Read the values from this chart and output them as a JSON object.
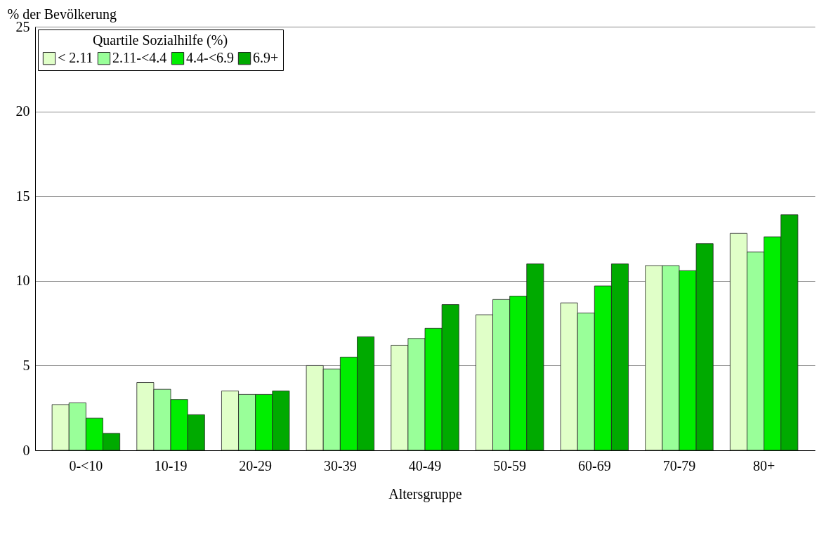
{
  "chart_data": {
    "type": "bar",
    "xlabel": "Altersgruppe",
    "ylabel": "% der Bevölkerung",
    "legend_title": "Quartile Sozialhilfe (%)",
    "categories": [
      "0-<10",
      "10-19",
      "20-29",
      "30-39",
      "40-49",
      "50-59",
      "60-69",
      "70-79",
      "80+"
    ],
    "series": [
      {
        "name": "< 2.11",
        "color": "#e0ffc8",
        "values": [
          2.7,
          4.0,
          3.5,
          5.0,
          6.2,
          8.0,
          8.7,
          10.9,
          12.8
        ]
      },
      {
        "name": "2.11-<4.4",
        "color": "#99ff99",
        "values": [
          2.8,
          3.6,
          3.3,
          4.8,
          6.6,
          8.9,
          8.1,
          10.9,
          11.7
        ]
      },
      {
        "name": "4.4-<6.9",
        "color": "#00ee00",
        "values": [
          1.9,
          3.0,
          3.3,
          5.5,
          7.2,
          9.1,
          9.7,
          10.6,
          12.6
        ]
      },
      {
        "name": "6.9+",
        "color": "#00aa00",
        "values": [
          1.0,
          2.1,
          3.5,
          6.7,
          8.6,
          11.0,
          11.0,
          12.2,
          13.9
        ]
      }
    ],
    "ylim": [
      0,
      25
    ],
    "yticks": [
      0,
      5,
      10,
      15,
      20,
      25
    ],
    "grid": "y",
    "legend": "top left"
  }
}
